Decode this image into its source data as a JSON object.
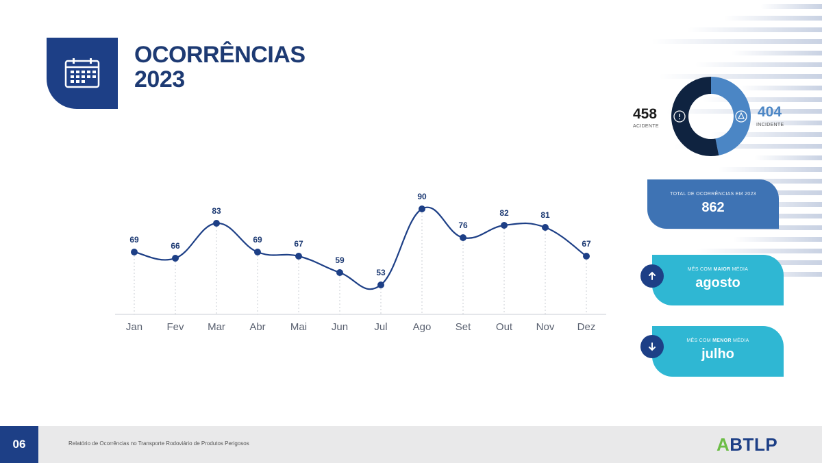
{
  "title": {
    "line1": "OCORRÊNCIAS",
    "line2": "2023"
  },
  "summary": {
    "acidentes": {
      "value": "458",
      "label": "ACIDENTE"
    },
    "incidentes": {
      "value": "404",
      "label": "INCIDENTE"
    },
    "total": {
      "label": "TOTAL DE OCORRÊNCIAS EM 2023",
      "value": "862"
    },
    "max": {
      "label_pre": "MÊS COM ",
      "label_bold": "MAIOR",
      "label_post": " MÉDIA",
      "value": "agosto"
    },
    "min": {
      "label_pre": "MÊS COM ",
      "label_bold": "MENOR",
      "label_post": " MÉDIA",
      "value": "julho"
    }
  },
  "colors": {
    "navy": "#1d3f86",
    "dark": "#0f2340",
    "steel_blue": "#3e73b4",
    "cyan": "#2fb7d3",
    "donut_light": "#4b86c5"
  },
  "chart_data": {
    "type": "line",
    "categories": [
      "Jan",
      "Fev",
      "Mar",
      "Abr",
      "Mai",
      "Jun",
      "Jul",
      "Ago",
      "Set",
      "Out",
      "Nov",
      "Dez"
    ],
    "values": [
      69,
      66,
      83,
      69,
      67,
      59,
      53,
      90,
      76,
      82,
      81,
      67
    ],
    "title": "",
    "xlabel": "",
    "ylabel": "",
    "grid": false
  },
  "donut": {
    "slices": [
      458,
      404
    ]
  },
  "footer": {
    "page": "06",
    "text": "Relatório de Ocorrências no Transporte Rodoviário de Produtos Perigosos",
    "logo_a": "A",
    "logo_rest": "BTLP"
  }
}
